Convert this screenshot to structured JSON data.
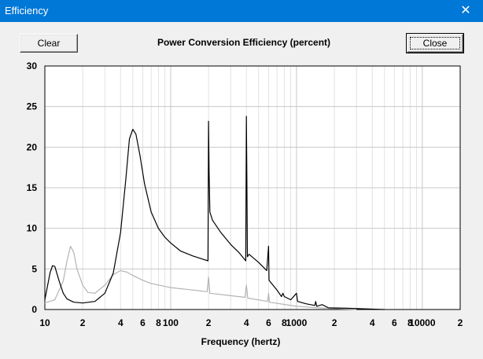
{
  "window": {
    "title": "Efficiency",
    "close_glyph": "✕"
  },
  "toolbar": {
    "clear_label": "Clear",
    "close_label": "Close"
  },
  "chart_data": {
    "type": "line",
    "title": "Power Conversion Efficiency (percent)",
    "xlabel": "Frequency (hertz)",
    "ylabel": "",
    "xscale": "log",
    "xlim": [
      10,
      20000
    ],
    "ylim": [
      0,
      30
    ],
    "grid": true,
    "y_ticks": [
      "0",
      "5",
      "10",
      "15",
      "20",
      "25",
      "30"
    ],
    "x_ticks": [
      "10",
      "2",
      "4",
      "6",
      "8",
      "100",
      "2",
      "4",
      "6",
      "8",
      "1000",
      "2",
      "4",
      "6",
      "8",
      "10000",
      "2"
    ],
    "series": [
      {
        "color": "#000000",
        "points": [
          [
            10,
            1.2
          ],
          [
            11,
            4.5
          ],
          [
            11.5,
            5.4
          ],
          [
            12,
            5.3
          ],
          [
            13,
            3.5
          ],
          [
            14,
            2.0
          ],
          [
            15,
            1.3
          ],
          [
            17,
            0.9
          ],
          [
            20,
            0.8
          ],
          [
            25,
            1.0
          ],
          [
            30,
            2.0
          ],
          [
            35,
            4.5
          ],
          [
            40,
            9.5
          ],
          [
            44,
            16
          ],
          [
            47,
            21.0
          ],
          [
            50,
            22.2
          ],
          [
            53,
            21.6
          ],
          [
            57,
            19.0
          ],
          [
            62,
            15.5
          ],
          [
            70,
            12.0
          ],
          [
            80,
            10.0
          ],
          [
            90,
            8.9
          ],
          [
            100,
            8.2
          ],
          [
            120,
            7.2
          ],
          [
            150,
            6.6
          ],
          [
            180,
            6.2
          ],
          [
            198,
            6.0
          ],
          [
            200,
            23.2
          ],
          [
            202,
            17.0
          ],
          [
            205,
            12.0
          ],
          [
            215,
            11.0
          ],
          [
            250,
            9.5
          ],
          [
            300,
            8.0
          ],
          [
            350,
            7.0
          ],
          [
            395,
            6.0
          ],
          [
            400,
            23.8
          ],
          [
            403,
            16.5
          ],
          [
            407,
            6.5
          ],
          [
            420,
            6.8
          ],
          [
            500,
            5.8
          ],
          [
            580,
            4.8
          ],
          [
            600,
            7.8
          ],
          [
            605,
            3.6
          ],
          [
            650,
            3.0
          ],
          [
            700,
            2.4
          ],
          [
            760,
            1.6
          ],
          [
            780,
            2.0
          ],
          [
            800,
            1.6
          ],
          [
            900,
            1.2
          ],
          [
            1000,
            2.0
          ],
          [
            1020,
            1.0
          ],
          [
            1200,
            0.7
          ],
          [
            1400,
            0.5
          ],
          [
            1420,
            1.0
          ],
          [
            1450,
            0.4
          ],
          [
            1600,
            0.6
          ],
          [
            1800,
            0.2
          ],
          [
            2500,
            0.15
          ],
          [
            4000,
            0.05
          ],
          [
            5000,
            0.0
          ]
        ]
      },
      {
        "color": "#b4b4b4",
        "points": [
          [
            10,
            0.8
          ],
          [
            12,
            1.2
          ],
          [
            14,
            3.5
          ],
          [
            15,
            6.0
          ],
          [
            16,
            7.8
          ],
          [
            17,
            7.0
          ],
          [
            18,
            5.0
          ],
          [
            20,
            3.0
          ],
          [
            22,
            2.1
          ],
          [
            25,
            2.0
          ],
          [
            30,
            3.0
          ],
          [
            35,
            4.3
          ],
          [
            40,
            4.8
          ],
          [
            45,
            4.6
          ],
          [
            50,
            4.2
          ],
          [
            60,
            3.6
          ],
          [
            70,
            3.2
          ],
          [
            100,
            2.7
          ],
          [
            150,
            2.4
          ],
          [
            195,
            2.2
          ],
          [
            200,
            4.0
          ],
          [
            205,
            2.0
          ],
          [
            300,
            1.7
          ],
          [
            390,
            1.5
          ],
          [
            400,
            3.0
          ],
          [
            410,
            1.4
          ],
          [
            590,
            1.0
          ],
          [
            600,
            2.0
          ],
          [
            610,
            0.9
          ],
          [
            1000,
            0.4
          ],
          [
            1500,
            0.2
          ],
          [
            3000,
            0.0
          ]
        ]
      }
    ]
  }
}
